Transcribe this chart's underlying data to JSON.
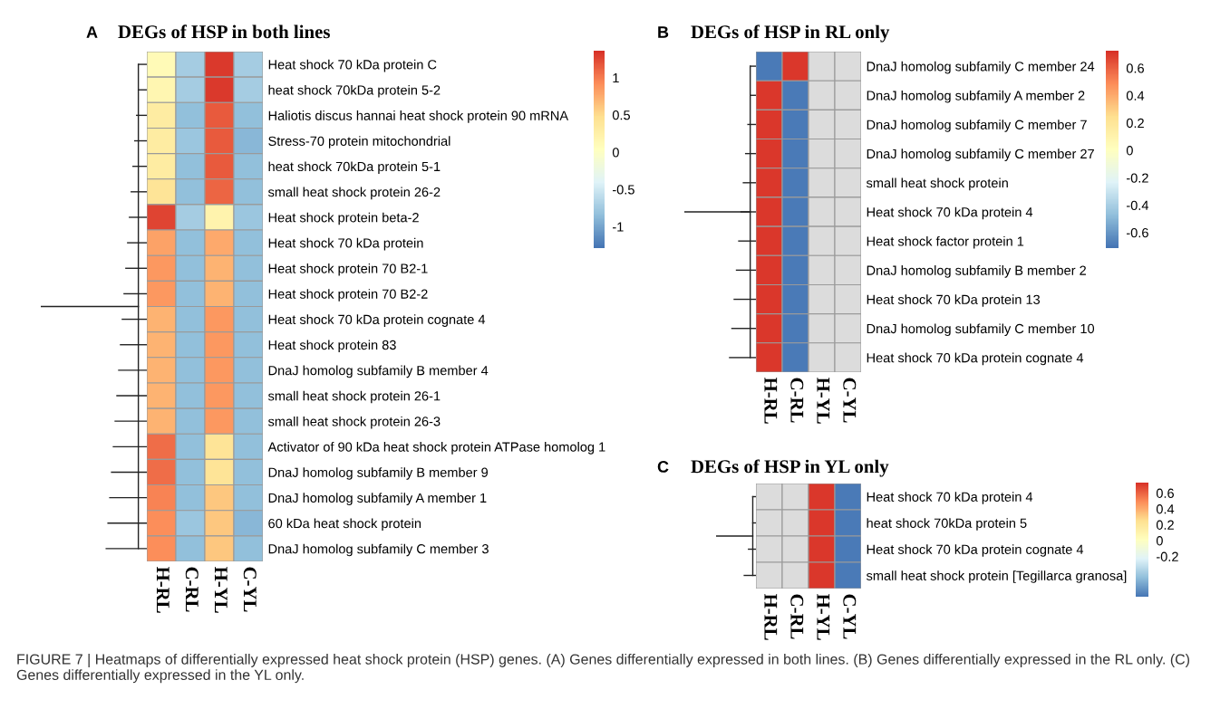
{
  "chart_data": [
    {
      "type": "heatmap",
      "title": "DEGs of HSP in both lines",
      "annotations": [
        "A"
      ],
      "categories": [
        "H-RL",
        "C-RL",
        "H-YL",
        "C-YL"
      ],
      "y_categories": [
        "Heat shock 70 kDa protein C",
        "heat shock 70kDa protein 5-2",
        "Haliotis discus hannai heat shock protein 90 mRNA",
        "Stress-70 protein mitochondrial",
        "heat shock 70kDa protein 5-1",
        "small heat shock protein 26-2",
        "Heat shock protein beta-2",
        "Heat shock 70 kDa protein",
        "Heat shock protein 70 B2-1",
        "Heat shock protein 70 B2-2",
        "Heat shock 70 kDa protein cognate 4",
        "Heat shock protein 83",
        "DnaJ homolog subfamily B member 4",
        "small heat shock protein 26-1",
        "small heat shock protein 26-3",
        "Activator of 90 kDa heat shock protein ATPase homolog 1",
        "DnaJ homolog subfamily B member 9",
        "DnaJ homolog subfamily A member 1",
        "60 kDa heat shock protein",
        "DnaJ homolog subfamily C member 3"
      ],
      "cells": [
        [
          0.1,
          -0.75,
          1.3,
          -0.75
        ],
        [
          0.15,
          -0.75,
          1.3,
          -0.75
        ],
        [
          0.3,
          -0.85,
          1.15,
          -0.85
        ],
        [
          0.3,
          -0.8,
          1.15,
          -0.9
        ],
        [
          0.3,
          -0.85,
          1.15,
          -0.85
        ],
        [
          0.4,
          -0.85,
          1.1,
          -0.85
        ],
        [
          1.25,
          -0.75,
          0.2,
          -0.8
        ],
        [
          0.8,
          -0.85,
          0.75,
          -0.85
        ],
        [
          0.85,
          -0.85,
          0.7,
          -0.85
        ],
        [
          0.85,
          -0.85,
          0.7,
          -0.85
        ],
        [
          0.7,
          -0.85,
          0.85,
          -0.85
        ],
        [
          0.7,
          -0.85,
          0.85,
          -0.85
        ],
        [
          0.7,
          -0.85,
          0.85,
          -0.85
        ],
        [
          0.7,
          -0.85,
          0.85,
          -0.85
        ],
        [
          0.7,
          -0.85,
          0.85,
          -0.85
        ],
        [
          1.05,
          -0.85,
          0.4,
          -0.85
        ],
        [
          1.05,
          -0.85,
          0.4,
          -0.85
        ],
        [
          0.95,
          -0.85,
          0.6,
          -0.85
        ],
        [
          0.9,
          -0.8,
          0.6,
          -0.9
        ],
        [
          0.9,
          -0.85,
          0.6,
          -0.85
        ]
      ],
      "clim": [
        -1.3,
        1.35
      ],
      "cticks": [
        -1,
        -0.5,
        0,
        0.5,
        1
      ]
    },
    {
      "type": "heatmap",
      "title": "DEGs of HSP in RL only",
      "annotations": [
        "B"
      ],
      "categories": [
        "H-RL",
        "C-RL",
        "H-YL",
        "C-YL"
      ],
      "y_categories": [
        "DnaJ homolog subfamily C member 24",
        "DnaJ homolog subfamily A member 2",
        "DnaJ homolog subfamily C member 7",
        "DnaJ homolog subfamily C member 27",
        "small heat shock protein",
        "Heat shock 70 kDa protein 4",
        "Heat shock factor protein 1",
        "DnaJ homolog subfamily B member 2",
        "Heat shock 70 kDa protein 13",
        "DnaJ homolog subfamily C member 10",
        "Heat shock 70 kDa protein cognate 4"
      ],
      "cells": [
        [
          -0.7,
          0.7,
          null,
          null
        ],
        [
          0.7,
          -0.7,
          null,
          null
        ],
        [
          0.7,
          -0.7,
          null,
          null
        ],
        [
          0.7,
          -0.7,
          null,
          null
        ],
        [
          0.7,
          -0.7,
          null,
          null
        ],
        [
          0.7,
          -0.7,
          null,
          null
        ],
        [
          0.7,
          -0.7,
          null,
          null
        ],
        [
          0.7,
          -0.7,
          null,
          null
        ],
        [
          0.7,
          -0.7,
          null,
          null
        ],
        [
          0.7,
          -0.7,
          null,
          null
        ],
        [
          0.7,
          -0.7,
          null,
          null
        ]
      ],
      "clim": [
        -0.72,
        0.72
      ],
      "cticks": [
        -0.6,
        -0.4,
        -0.2,
        0,
        0.2,
        0.4,
        0.6
      ]
    },
    {
      "type": "heatmap",
      "title": "DEGs of HSP in YL only",
      "categories": [
        "H-RL",
        "C-RL",
        "H-YL",
        "C-YL"
      ],
      "y_categories": [
        "Heat shock 70 kDa protein 4",
        "heat shock 70kDa protein 5",
        "Heat shock 70 kDa protein cognate 4",
        "small heat shock protein [Tegillarca granosa]"
      ],
      "cells": [
        [
          null,
          null,
          0.7,
          -0.7
        ],
        [
          null,
          null,
          0.7,
          -0.7
        ],
        [
          null,
          null,
          0.7,
          -0.7
        ],
        [
          null,
          null,
          0.7,
          -0.7
        ]
      ],
      "clim": [
        -0.72,
        0.72
      ],
      "cticks": [
        -0.2,
        0,
        0.2,
        0.4,
        0.6
      ],
      "annotations": [
        "C",
        "FIGURE 7 | Heatmaps of differentially expressed heat shock protein (HSP) genes. (A) Genes differentially expressed in both lines. (B) Genes differentially expressed in the RL only. (C) Genes differentially expressed in the YL only."
      ]
    }
  ]
}
